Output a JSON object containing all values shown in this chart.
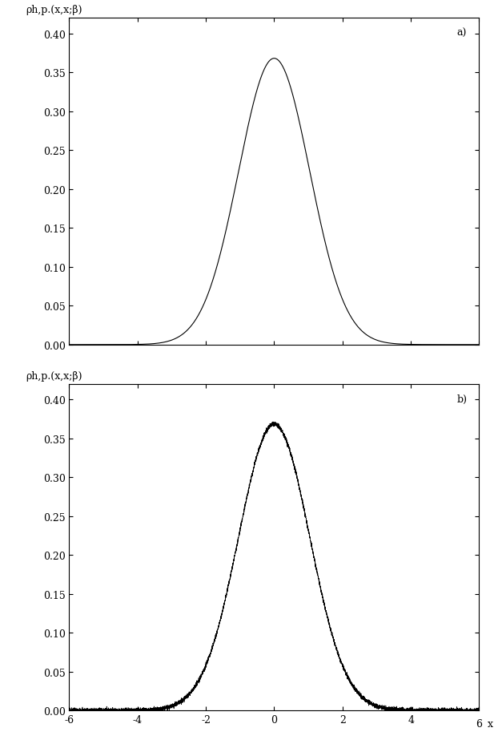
{
  "ylabel": "ρh,p.(x,x;β)",
  "xlabel": "x",
  "xlim": [
    -6,
    6
  ],
  "ylim_a": [
    0,
    0.42
  ],
  "ylim_b": [
    0,
    0.42
  ],
  "xticks": [
    -6,
    -4,
    -2,
    0,
    2,
    4,
    6
  ],
  "yticks": [
    0,
    0.05,
    0.1,
    0.15,
    0.2,
    0.25,
    0.3,
    0.35,
    0.4
  ],
  "m": 1.0,
  "omega": 1.0,
  "beta": 1.0,
  "label_a": "a)",
  "label_b": "b)",
  "line_color": "black",
  "noise_amplitude": 0.0015,
  "n_exact": 800,
  "n_pimc": 8000,
  "x_range": [
    -6,
    6
  ],
  "background_color": "white",
  "font_family": "DejaVu Serif",
  "tick_label_size": 9,
  "axis_label_size": 9,
  "figsize": [
    6.17,
    9.29
  ],
  "dpi": 100
}
